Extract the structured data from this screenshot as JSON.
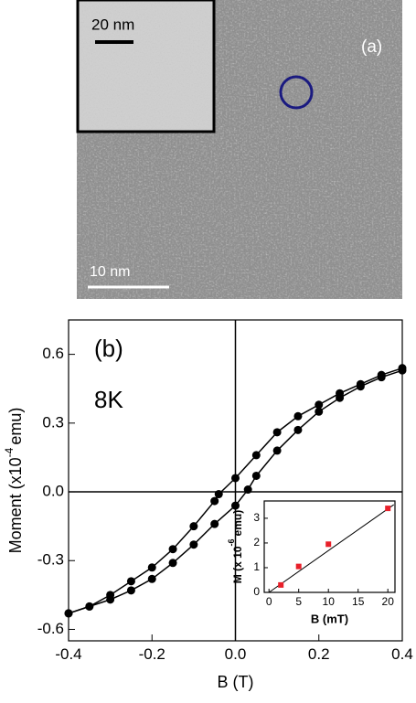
{
  "panel_a": {
    "label": "(a)",
    "inset_scale": "20 nm",
    "scale": "10 nm"
  },
  "chart_data": [
    {
      "type": "scatter",
      "annotations": [
        "(b)",
        "8K"
      ],
      "xlabel": "B (T)",
      "ylabel": {
        "text": "Moment (x10",
        "sup": "-4",
        "unit": "emu)"
      },
      "xlim": [
        -0.4,
        0.4
      ],
      "ylim": [
        -0.65,
        0.75
      ],
      "xticks": [
        -0.4,
        -0.2,
        {
          "value": 0,
          "label": "0.0"
        },
        0.2,
        0.4
      ],
      "yticks": [
        -0.6,
        -0.3,
        {
          "value": 0,
          "label": "0.0"
        },
        0.3,
        0.6
      ],
      "zero_lines": true,
      "series": [
        {
          "color": "#000000",
          "x": [
            -0.4,
            -0.35,
            -0.3,
            -0.25,
            -0.2,
            -0.15,
            -0.1,
            -0.05,
            0,
            0.03,
            0.05,
            0.1,
            0.15,
            0.2,
            0.25,
            0.3,
            0.35,
            0.4
          ],
          "values": [
            -0.53,
            -0.5,
            -0.47,
            -0.43,
            -0.38,
            -0.31,
            -0.23,
            -0.14,
            -0.06,
            0.01,
            0.07,
            0.18,
            0.27,
            0.35,
            0.41,
            0.46,
            0.5,
            0.53
          ]
        },
        {
          "color": "#000000",
          "x": [
            0.4,
            0.35,
            0.3,
            0.25,
            0.2,
            0.15,
            0.1,
            0.05,
            0,
            -0.04,
            -0.05,
            -0.1,
            -0.15,
            -0.2,
            -0.25,
            -0.3,
            -0.35,
            -0.4
          ],
          "values": [
            0.54,
            0.51,
            0.47,
            0.43,
            0.38,
            0.33,
            0.26,
            0.16,
            0.06,
            -0.01,
            -0.04,
            -0.15,
            -0.25,
            -0.33,
            -0.39,
            -0.45,
            -0.5,
            -0.53
          ]
        }
      ]
    },
    {
      "type": "scatter",
      "xlabel": "B (mT)",
      "ylabel": {
        "text": "M (x 10",
        "sup": "-6",
        "unit": "emu)"
      },
      "xlim": [
        -0.8,
        21.2
      ],
      "ylim": [
        0,
        3.7
      ],
      "xticks": [
        0,
        5,
        10,
        15,
        20
      ],
      "yticks": [
        0,
        1,
        2,
        3
      ],
      "series": [
        {
          "color": "#e8202a",
          "marker": "square",
          "x": [
            2,
            5,
            10,
            20
          ],
          "values": [
            0.3,
            1.05,
            1.95,
            3.4
          ]
        }
      ],
      "fit": {
        "x": [
          0,
          21
        ],
        "values": [
          0,
          3.55
        ]
      }
    }
  ]
}
